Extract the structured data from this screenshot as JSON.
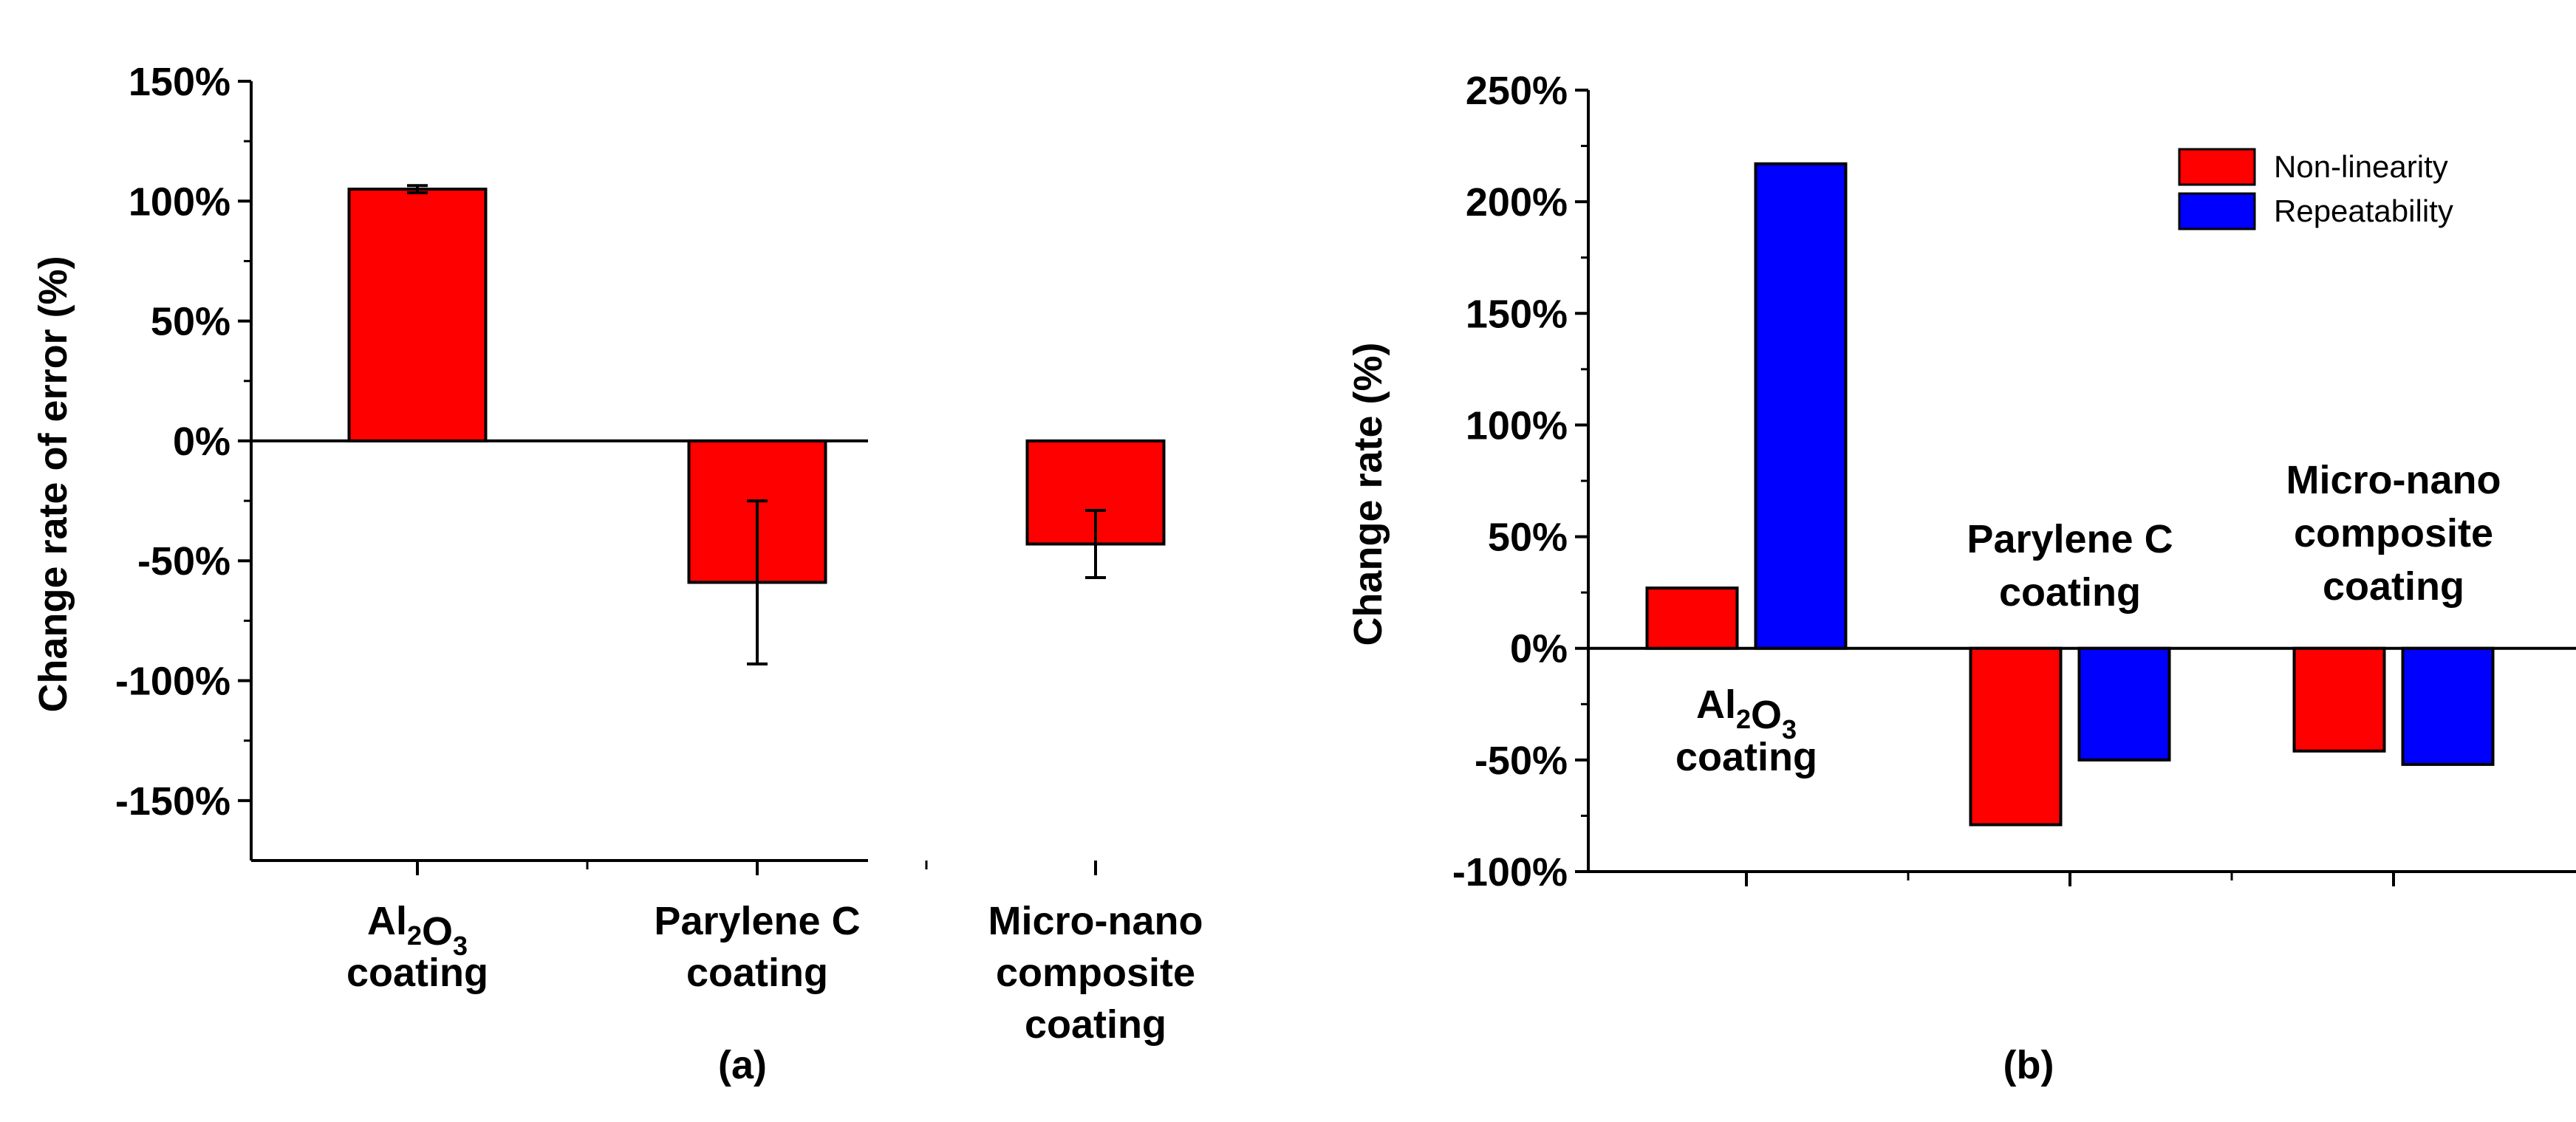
{
  "chart_data": [
    {
      "type": "bar",
      "panel_label": "(a)",
      "ylabel": "Change rate of error (%)",
      "ylim": [
        -175,
        150
      ],
      "yticks": [
        {
          "value": 150,
          "label": "150%"
        },
        {
          "value": 100,
          "label": "100%"
        },
        {
          "value": 50,
          "label": "50%"
        },
        {
          "value": 0,
          "label": "0%"
        },
        {
          "value": -50,
          "label": "-50%"
        },
        {
          "value": -100,
          "label": "-100%"
        },
        {
          "value": -150,
          "label": "-150%"
        }
      ],
      "categories": [
        {
          "lines": [
            {
              "main": "Al",
              "sub": "2"
            },
            {
              "main": "O",
              "sub": "3"
            }
          ],
          "line2": "coating"
        },
        {
          "line1": "Parylene C",
          "line2": "coating"
        },
        {
          "line1": "Micro-nano",
          "line2": "composite",
          "line3": "coating"
        }
      ],
      "series": [
        {
          "name": "Change rate of error",
          "color": "#ff0000",
          "values": [
            105,
            -59,
            -43
          ],
          "err_low": [
            103.5,
            -93,
            -57
          ],
          "err_high": [
            106.5,
            -25,
            -29
          ]
        }
      ]
    },
    {
      "type": "bar",
      "panel_label": "(b)",
      "ylabel": "Change rate (%)",
      "ylim": [
        -100,
        250
      ],
      "yticks": [
        {
          "value": 250,
          "label": "250%"
        },
        {
          "value": 200,
          "label": "200%"
        },
        {
          "value": 150,
          "label": "150%"
        },
        {
          "value": 100,
          "label": "100%"
        },
        {
          "value": 50,
          "label": "50%"
        },
        {
          "value": 0,
          "label": "0%"
        },
        {
          "value": -50,
          "label": "-50%"
        },
        {
          "value": -100,
          "label": "-100%"
        }
      ],
      "categories": [
        {
          "lines": [
            {
              "main": "Al",
              "sub": "2"
            },
            {
              "main": "O",
              "sub": "3"
            }
          ],
          "line2": "coating"
        },
        {
          "line1": "Parylene C",
          "line2": "coating"
        },
        {
          "line1": "Micro-nano",
          "line2": "composite",
          "line3": "coating"
        }
      ],
      "legend": {
        "position": "top-right"
      },
      "series": [
        {
          "name": "Non-linearity",
          "color": "#ff0000",
          "values": [
            27,
            -79,
            -46
          ]
        },
        {
          "name": "Repeatability",
          "color": "#0000ff",
          "values": [
            217,
            -50,
            -52
          ]
        }
      ]
    }
  ]
}
